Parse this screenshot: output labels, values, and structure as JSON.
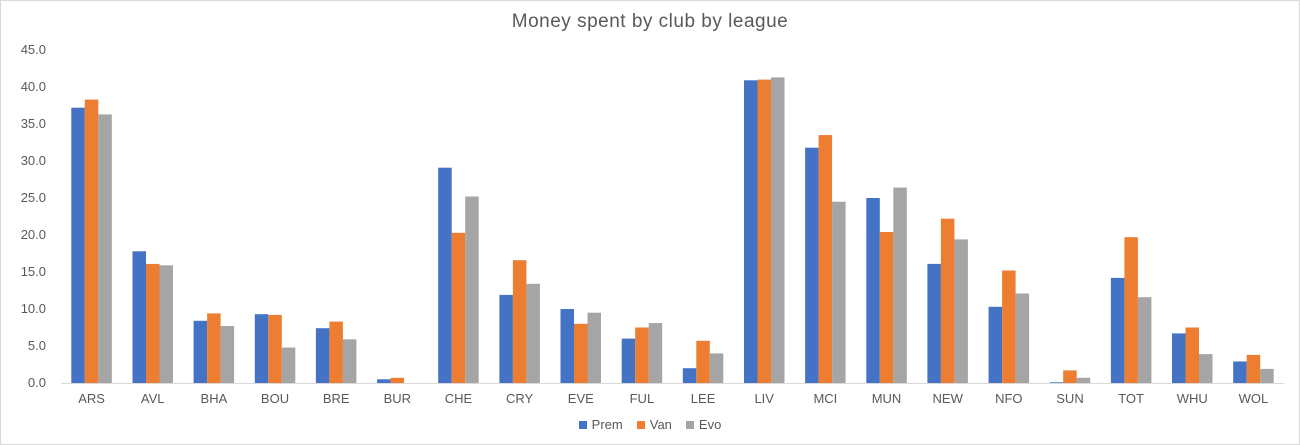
{
  "chart_data": {
    "type": "bar",
    "title": "Money spent by club by league",
    "xlabel": "",
    "ylabel": "",
    "ylim": [
      0,
      45
    ],
    "yticks": [
      "0.0",
      "5.0",
      "10.0",
      "15.0",
      "20.0",
      "25.0",
      "30.0",
      "35.0",
      "40.0",
      "45.0"
    ],
    "grid": false,
    "legend_position": "bottom",
    "categories": [
      "ARS",
      "AVL",
      "BHA",
      "BOU",
      "BRE",
      "BUR",
      "CHE",
      "CRY",
      "EVE",
      "FUL",
      "LEE",
      "LIV",
      "MCI",
      "MUN",
      "NEW",
      "NFO",
      "SUN",
      "TOT",
      "WHU",
      "WOL"
    ],
    "series": [
      {
        "name": "Prem",
        "color": "#4472c4",
        "values": [
          37.2,
          17.8,
          8.4,
          9.3,
          7.4,
          0.5,
          29.1,
          11.9,
          10.0,
          6.0,
          2.0,
          40.9,
          31.8,
          25.0,
          16.1,
          10.3,
          0.1,
          14.2,
          6.7,
          2.9
        ]
      },
      {
        "name": "Van",
        "color": "#ed7d31",
        "values": [
          38.3,
          16.1,
          9.4,
          9.2,
          8.3,
          0.7,
          20.3,
          16.6,
          8.0,
          7.5,
          5.7,
          41.0,
          33.5,
          20.4,
          22.2,
          15.2,
          1.7,
          19.7,
          7.5,
          3.8
        ]
      },
      {
        "name": "Evo",
        "color": "#a5a5a5",
        "values": [
          36.3,
          15.9,
          7.7,
          4.8,
          5.9,
          0.0,
          25.2,
          13.4,
          9.5,
          8.1,
          4.0,
          41.3,
          24.5,
          26.4,
          19.4,
          12.1,
          0.7,
          11.6,
          3.9,
          1.9
        ]
      }
    ]
  }
}
